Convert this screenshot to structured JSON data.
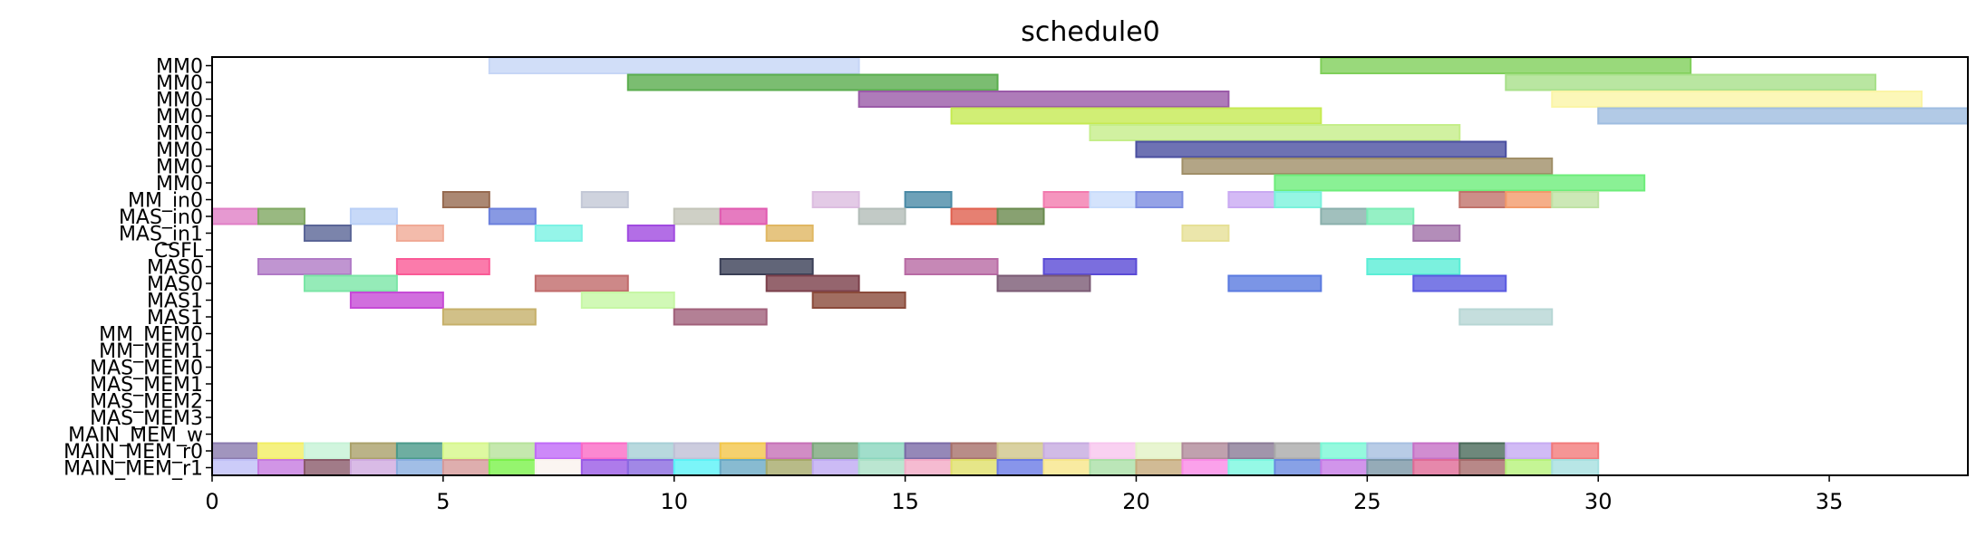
{
  "chart_data": {
    "type": "gantt",
    "title": "schedule0",
    "xlim": [
      0,
      38
    ],
    "x_ticks": [
      0,
      5,
      10,
      15,
      20,
      25,
      30,
      35
    ],
    "grid": false,
    "rows": [
      "MM0",
      "MM0",
      "MM0",
      "MM0",
      "MM0",
      "MM0",
      "MM0",
      "MM0",
      "MM_in0",
      "MAS_in0",
      "MAS_in1",
      "CSFL",
      "MAS0",
      "MAS0",
      "MAS1",
      "MAS1",
      "MM_MEM0",
      "MM_MEM1",
      "MAS_MEM0",
      "MAS_MEM1",
      "MAS_MEM2",
      "MAS_MEM3",
      "MAIN_MEM_w",
      "MAIN_MEM_r0",
      "MAIN_MEM_r1"
    ],
    "bars": [
      {
        "row": 0,
        "start": 6,
        "end": 14,
        "color": "#c6d6f6"
      },
      {
        "row": 0,
        "start": 24,
        "end": 32,
        "color": "#7fcf5a"
      },
      {
        "row": 1,
        "start": 9,
        "end": 17,
        "color": "#5aad4e"
      },
      {
        "row": 1,
        "start": 28,
        "end": 36,
        "color": "#a8e08a"
      },
      {
        "row": 2,
        "start": 14,
        "end": 22,
        "color": "#9a5aa8"
      },
      {
        "row": 2,
        "start": 29,
        "end": 37,
        "color": "#fbf5a6"
      },
      {
        "row": 3,
        "start": 16,
        "end": 24,
        "color": "#c6ea52"
      },
      {
        "row": 3,
        "start": 30,
        "end": 38,
        "color": "#9fbde0"
      },
      {
        "row": 4,
        "start": 19,
        "end": 27,
        "color": "#c5ee8a"
      },
      {
        "row": 5,
        "start": 20,
        "end": 28,
        "color": "#4a4fa0"
      },
      {
        "row": 6,
        "start": 21,
        "end": 29,
        "color": "#a08f68"
      },
      {
        "row": 7,
        "start": 23,
        "end": 31,
        "color": "#6ded7a"
      },
      {
        "row": 8,
        "start": 5,
        "end": 6,
        "color": "#966a50"
      },
      {
        "row": 8,
        "start": 8,
        "end": 9,
        "color": "#c3c8d6"
      },
      {
        "row": 8,
        "start": 13,
        "end": 14,
        "color": "#dcbde0"
      },
      {
        "row": 8,
        "start": 15,
        "end": 16,
        "color": "#4a8aa6"
      },
      {
        "row": 8,
        "start": 18,
        "end": 19,
        "color": "#f27aae"
      },
      {
        "row": 8,
        "start": 19,
        "end": 20,
        "color": "#c9dcfb"
      },
      {
        "row": 8,
        "start": 20,
        "end": 21,
        "color": "#7b8be0"
      },
      {
        "row": 8,
        "start": 22,
        "end": 23,
        "color": "#c9a9f2"
      },
      {
        "row": 8,
        "start": 23,
        "end": 24,
        "color": "#7af2dc"
      },
      {
        "row": 8,
        "start": 27,
        "end": 28,
        "color": "#c0726a"
      },
      {
        "row": 8,
        "start": 28,
        "end": 29,
        "color": "#f29a6a"
      },
      {
        "row": 8,
        "start": 29,
        "end": 30,
        "color": "#bfe2a4"
      },
      {
        "row": 9,
        "start": 0,
        "end": 1,
        "color": "#e07fc6"
      },
      {
        "row": 9,
        "start": 1,
        "end": 2,
        "color": "#7fa862"
      },
      {
        "row": 9,
        "start": 3,
        "end": 4,
        "color": "#b9cff6"
      },
      {
        "row": 9,
        "start": 6,
        "end": 7,
        "color": "#6a7fdc"
      },
      {
        "row": 9,
        "start": 10,
        "end": 11,
        "color": "#c3c4b8"
      },
      {
        "row": 9,
        "start": 11,
        "end": 12,
        "color": "#e05ab0"
      },
      {
        "row": 9,
        "start": 14,
        "end": 15,
        "color": "#b3bdb8"
      },
      {
        "row": 9,
        "start": 16,
        "end": 17,
        "color": "#e0604f"
      },
      {
        "row": 9,
        "start": 17,
        "end": 18,
        "color": "#6a8a4e"
      },
      {
        "row": 9,
        "start": 24,
        "end": 25,
        "color": "#8ab0ac"
      },
      {
        "row": 9,
        "start": 25,
        "end": 26,
        "color": "#7aedb6"
      },
      {
        "row": 10,
        "start": 2,
        "end": 3,
        "color": "#5a6596"
      },
      {
        "row": 10,
        "start": 4,
        "end": 5,
        "color": "#f0aa96"
      },
      {
        "row": 10,
        "start": 7,
        "end": 8,
        "color": "#7af2e4"
      },
      {
        "row": 10,
        "start": 9,
        "end": 10,
        "color": "#a04ae0"
      },
      {
        "row": 10,
        "start": 12,
        "end": 13,
        "color": "#e0b762"
      },
      {
        "row": 10,
        "start": 21,
        "end": 22,
        "color": "#e6e096"
      },
      {
        "row": 10,
        "start": 26,
        "end": 27,
        "color": "#a070a8"
      },
      {
        "row": 12,
        "start": 1,
        "end": 3,
        "color": "#b07ac6"
      },
      {
        "row": 12,
        "start": 4,
        "end": 6,
        "color": "#fa5a96"
      },
      {
        "row": 12,
        "start": 11,
        "end": 13,
        "color": "#3a3f56"
      },
      {
        "row": 12,
        "start": 15,
        "end": 17,
        "color": "#b86aa4"
      },
      {
        "row": 12,
        "start": 18,
        "end": 20,
        "color": "#5a4ad6"
      },
      {
        "row": 12,
        "start": 25,
        "end": 27,
        "color": "#5aeed6"
      },
      {
        "row": 13,
        "start": 2,
        "end": 4,
        "color": "#7ae6a6"
      },
      {
        "row": 13,
        "start": 7,
        "end": 9,
        "color": "#c06a6a"
      },
      {
        "row": 13,
        "start": 12,
        "end": 14,
        "color": "#7a3f4a"
      },
      {
        "row": 13,
        "start": 17,
        "end": 19,
        "color": "#7a5a74"
      },
      {
        "row": 13,
        "start": 22,
        "end": 24,
        "color": "#5a7ae0"
      },
      {
        "row": 13,
        "start": 26,
        "end": 28,
        "color": "#5a5ae0"
      },
      {
        "row": 14,
        "start": 3,
        "end": 5,
        "color": "#c64ad6"
      },
      {
        "row": 14,
        "start": 8,
        "end": 10,
        "color": "#c6f7a4"
      },
      {
        "row": 14,
        "start": 13,
        "end": 15,
        "color": "#8a4a3a"
      },
      {
        "row": 15,
        "start": 5,
        "end": 7,
        "color": "#c6b06a"
      },
      {
        "row": 15,
        "start": 10,
        "end": 12,
        "color": "#a0607a"
      },
      {
        "row": 15,
        "start": 27,
        "end": 29,
        "color": "#b6d6d4"
      },
      {
        "row": 23,
        "start": 0,
        "end": 1,
        "color": "#8a7aae"
      },
      {
        "row": 23,
        "start": 1,
        "end": 2,
        "color": "#f2ee62"
      },
      {
        "row": 23,
        "start": 2,
        "end": 3,
        "color": "#c6f2d6"
      },
      {
        "row": 23,
        "start": 3,
        "end": 4,
        "color": "#aaa06a"
      },
      {
        "row": 23,
        "start": 4,
        "end": 5,
        "color": "#4a9a8a"
      },
      {
        "row": 23,
        "start": 5,
        "end": 6,
        "color": "#d6f78a"
      },
      {
        "row": 23,
        "start": 6,
        "end": 7,
        "color": "#b6e29a"
      },
      {
        "row": 23,
        "start": 7,
        "end": 8,
        "color": "#c06af7"
      },
      {
        "row": 23,
        "start": 8,
        "end": 9,
        "color": "#fa6ac6"
      },
      {
        "row": 23,
        "start": 9,
        "end": 10,
        "color": "#a6cfd6"
      },
      {
        "row": 23,
        "start": 10,
        "end": 11,
        "color": "#bfbfd6"
      },
      {
        "row": 23,
        "start": 11,
        "end": 12,
        "color": "#f2c64a"
      },
      {
        "row": 23,
        "start": 12,
        "end": 13,
        "color": "#c670b6"
      },
      {
        "row": 23,
        "start": 13,
        "end": 14,
        "color": "#7aa67a"
      },
      {
        "row": 23,
        "start": 14,
        "end": 15,
        "color": "#8ad6be"
      },
      {
        "row": 23,
        "start": 15,
        "end": 16,
        "color": "#7a6aa6"
      },
      {
        "row": 23,
        "start": 16,
        "end": 17,
        "color": "#a6706a"
      },
      {
        "row": 23,
        "start": 17,
        "end": 18,
        "color": "#cfc68a"
      },
      {
        "row": 23,
        "start": 18,
        "end": 19,
        "color": "#c6aae0"
      },
      {
        "row": 23,
        "start": 19,
        "end": 20,
        "color": "#f7c6ee"
      },
      {
        "row": 23,
        "start": 20,
        "end": 21,
        "color": "#e2f2c6"
      },
      {
        "row": 23,
        "start": 21,
        "end": 22,
        "color": "#b08a9a"
      },
      {
        "row": 23,
        "start": 22,
        "end": 23,
        "color": "#8a7a96"
      },
      {
        "row": 23,
        "start": 23,
        "end": 24,
        "color": "#aaaaaa"
      },
      {
        "row": 23,
        "start": 24,
        "end": 25,
        "color": "#7af7d6"
      },
      {
        "row": 23,
        "start": 25,
        "end": 26,
        "color": "#a6bfe0"
      },
      {
        "row": 23,
        "start": 26,
        "end": 27,
        "color": "#c670c6"
      },
      {
        "row": 23,
        "start": 27,
        "end": 28,
        "color": "#4a6a5a"
      },
      {
        "row": 23,
        "start": 28,
        "end": 29,
        "color": "#c6aaf2"
      },
      {
        "row": 23,
        "start": 29,
        "end": 30,
        "color": "#f27a7a"
      },
      {
        "row": 24,
        "start": 0,
        "end": 1,
        "color": "#bfbff7"
      },
      {
        "row": 24,
        "start": 1,
        "end": 2,
        "color": "#c67ae0"
      },
      {
        "row": 24,
        "start": 2,
        "end": 3,
        "color": "#8a5a6a"
      },
      {
        "row": 24,
        "start": 3,
        "end": 4,
        "color": "#cfaae0"
      },
      {
        "row": 24,
        "start": 4,
        "end": 5,
        "color": "#8aaee0"
      },
      {
        "row": 24,
        "start": 5,
        "end": 6,
        "color": "#d69a9a"
      },
      {
        "row": 24,
        "start": 6,
        "end": 7,
        "color": "#7af24a"
      },
      {
        "row": 24,
        "start": 7,
        "end": 8,
        "color": "#faf2ee"
      },
      {
        "row": 24,
        "start": 8,
        "end": 9,
        "color": "#9a5ae6"
      },
      {
        "row": 24,
        "start": 9,
        "end": 10,
        "color": "#8a6ae0"
      },
      {
        "row": 24,
        "start": 10,
        "end": 11,
        "color": "#5af2f7"
      },
      {
        "row": 24,
        "start": 11,
        "end": 12,
        "color": "#6aaac6"
      },
      {
        "row": 24,
        "start": 12,
        "end": 13,
        "color": "#a6aa6a"
      },
      {
        "row": 24,
        "start": 13,
        "end": 14,
        "color": "#bfaaf2"
      },
      {
        "row": 24,
        "start": 14,
        "end": 15,
        "color": "#aae0c6"
      },
      {
        "row": 24,
        "start": 15,
        "end": 16,
        "color": "#f2aac6"
      },
      {
        "row": 24,
        "start": 16,
        "end": 17,
        "color": "#e0e06a"
      },
      {
        "row": 24,
        "start": 17,
        "end": 18,
        "color": "#6a7ae6"
      },
      {
        "row": 24,
        "start": 18,
        "end": 19,
        "color": "#f7e68a"
      },
      {
        "row": 24,
        "start": 19,
        "end": 20,
        "color": "#aae0a6"
      },
      {
        "row": 24,
        "start": 20,
        "end": 21,
        "color": "#c6aa7a"
      },
      {
        "row": 24,
        "start": 21,
        "end": 22,
        "color": "#fa8ae6"
      },
      {
        "row": 24,
        "start": 22,
        "end": 23,
        "color": "#7af7e0"
      },
      {
        "row": 24,
        "start": 23,
        "end": 24,
        "color": "#6a8ae0"
      },
      {
        "row": 24,
        "start": 24,
        "end": 25,
        "color": "#c67ae6"
      },
      {
        "row": 24,
        "start": 25,
        "end": 26,
        "color": "#7a96a6"
      },
      {
        "row": 24,
        "start": 26,
        "end": 27,
        "color": "#e06a96"
      },
      {
        "row": 24,
        "start": 27,
        "end": 28,
        "color": "#a66a6a"
      },
      {
        "row": 24,
        "start": 28,
        "end": 29,
        "color": "#b6f27a"
      },
      {
        "row": 24,
        "start": 29,
        "end": 30,
        "color": "#a6e0e0"
      }
    ]
  }
}
